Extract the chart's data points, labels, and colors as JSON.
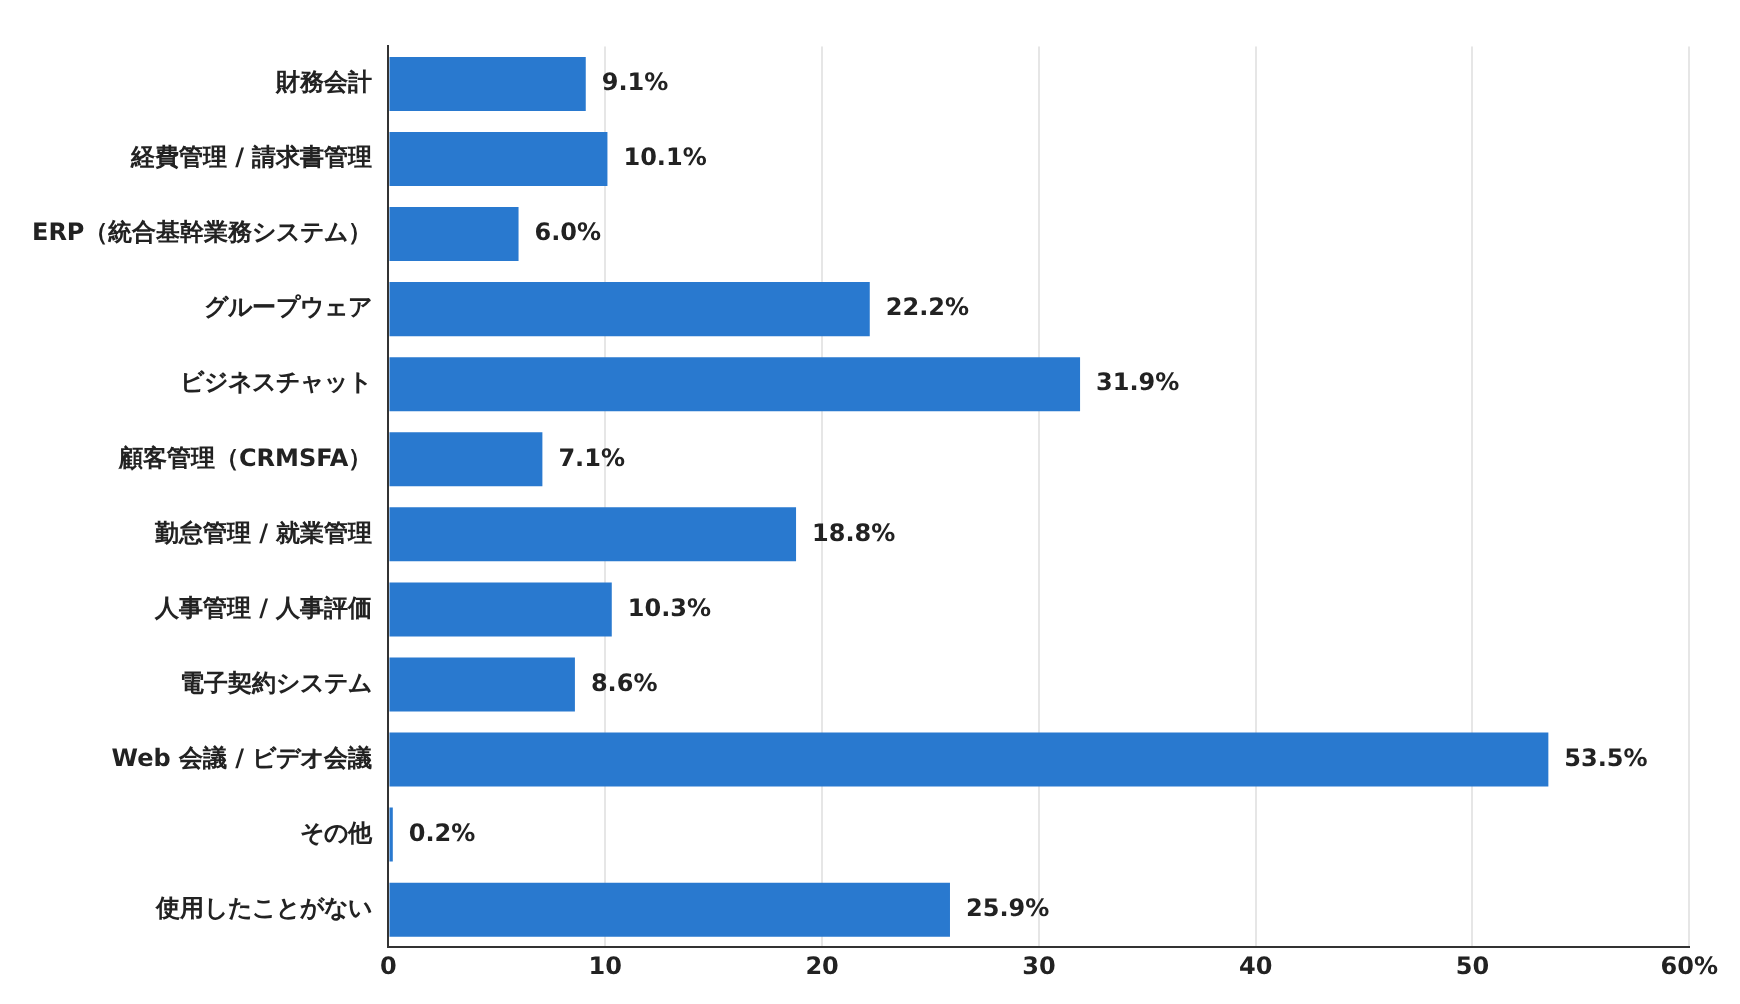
{
  "chart_data": {
    "type": "bar",
    "orientation": "horizontal",
    "categories": [
      "財務会計",
      "経費管理 / 請求書管理",
      "ERP（統合基幹業務システム）",
      "グループウェア",
      "ビジネスチャット",
      "顧客管理（CRMSFA）",
      "勤怠管理 / 就業管理",
      "人事管理 / 人事評価",
      "電子契約システム",
      "Web 会議 / ビデオ会議",
      "その他",
      "使用したことがない"
    ],
    "values": [
      9.1,
      10.1,
      6.0,
      22.2,
      31.9,
      7.1,
      18.8,
      10.3,
      8.6,
      53.5,
      0.2,
      25.9
    ],
    "value_labels": [
      "9.1%",
      "10.1%",
      "6.0%",
      "22.2%",
      "31.9%",
      "7.1%",
      "18.8%",
      "10.3%",
      "8.6%",
      "53.5%",
      "0.2%",
      "25.9%"
    ],
    "color": "#2979cf",
    "xlim": [
      0,
      60
    ],
    "xticks": [
      0,
      10,
      20,
      30,
      40,
      50,
      {
        "value": 60,
        "label": "60%"
      }
    ],
    "grid": "x"
  }
}
